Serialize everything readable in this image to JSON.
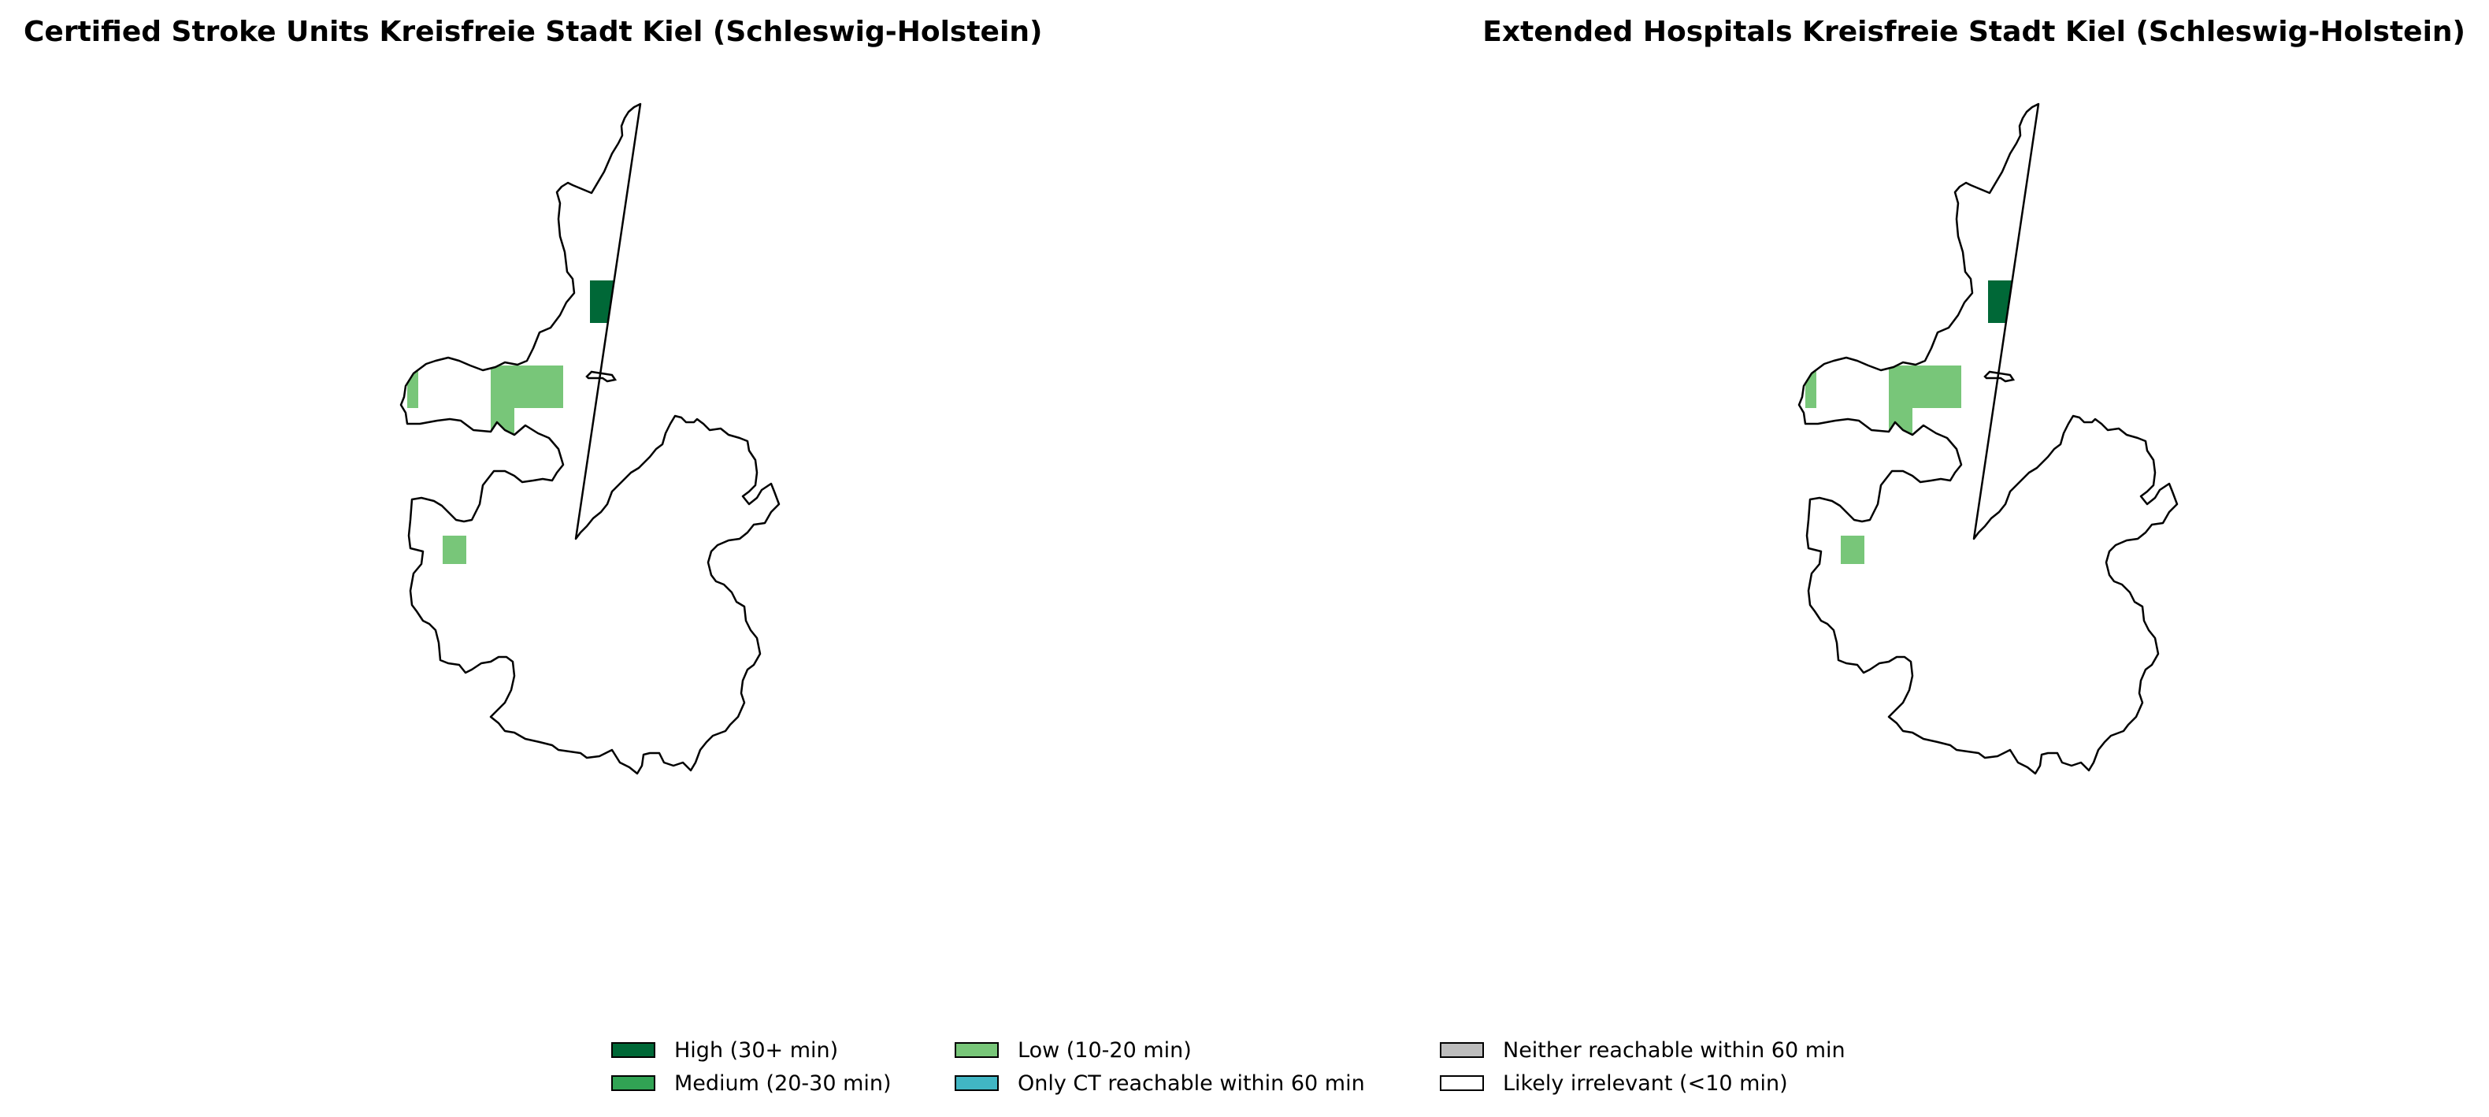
{
  "panels": [
    {
      "title": "Certified Stroke Units Kreisfreie Stadt Kiel (Schleswig-Holstein)"
    },
    {
      "title": "Extended Hospitals Kreisfreie Stadt Kiel (Schleswig-Holstein)"
    }
  ],
  "legend": {
    "items": [
      {
        "label": "High (30+ min)",
        "color": "#006837"
      },
      {
        "label": "Medium (20-30 min)",
        "color": "#31a354"
      },
      {
        "label": "Low (10-20 min)",
        "color": "#78c679"
      },
      {
        "label": "Only CT reachable within 60 min",
        "color": "#41b6c4"
      },
      {
        "label": "Neither reachable within 60 min",
        "color": "#bdbdbd"
      },
      {
        "label": "Likely irrelevant (<10 min)",
        "color": "#ffffff"
      }
    ]
  },
  "map_cells": [
    {
      "category": "Low (10-20 min)"
    },
    {
      "category": "High (30+ min)"
    },
    {
      "category": "Low (10-20 min)"
    },
    {
      "category": "Low (10-20 min)"
    },
    {
      "category": "Low (10-20 min)"
    },
    {
      "category": "Low (10-20 min)"
    },
    {
      "category": "Low (10-20 min)"
    }
  ]
}
